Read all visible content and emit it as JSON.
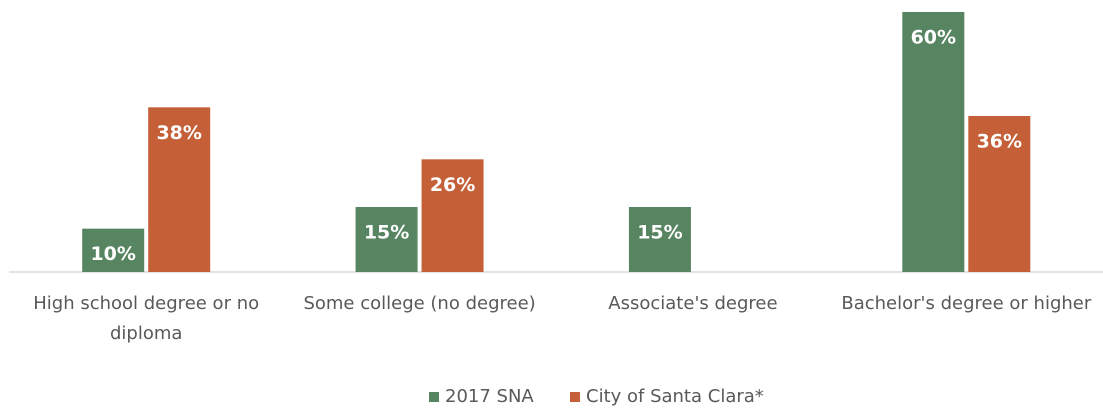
{
  "chart_data": {
    "type": "bar",
    "categories": [
      "High school degree or no diploma",
      "Some college (no degree)",
      "Associate's degree",
      "Bachelor's degree or higher"
    ],
    "series": [
      {
        "name": "2017 SNA",
        "color": "#588561",
        "values": [
          10,
          15,
          15,
          60
        ],
        "value_labels": [
          "10%",
          "15%",
          "15%",
          "60%"
        ]
      },
      {
        "name": "City of Santa Clara*",
        "color": "#c55f38",
        "values": [
          38,
          26,
          null,
          36
        ],
        "value_labels": [
          "38%",
          "26%",
          null,
          "36%"
        ]
      }
    ],
    "legend": "bottom"
  }
}
